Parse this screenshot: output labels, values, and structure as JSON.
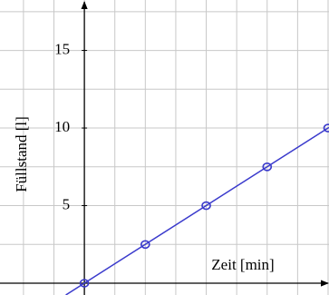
{
  "chart_data": {
    "type": "line",
    "x_label": "Zeit [min]",
    "y_label": "Füllstand [l]",
    "xlim": [
      -2.77,
      8.03
    ],
    "ylim": [
      -0.76,
      18.25
    ],
    "xgrid": [
      -2,
      -1,
      0,
      1,
      2,
      3,
      4,
      5,
      6,
      7,
      8
    ],
    "ygrid": [
      0,
      2.5,
      5,
      7.5,
      10,
      12.5,
      15,
      17.5
    ],
    "yticks": [
      5,
      10,
      15
    ],
    "grid": true,
    "color": "#3a3acc",
    "points": {
      "x": [
        0,
        2,
        4,
        6,
        8
      ],
      "values": [
        0,
        2.5,
        5,
        7.5,
        10
      ]
    },
    "line": {
      "x": [
        -0.61,
        8.03
      ],
      "values": [
        -0.76,
        10.04
      ]
    }
  }
}
